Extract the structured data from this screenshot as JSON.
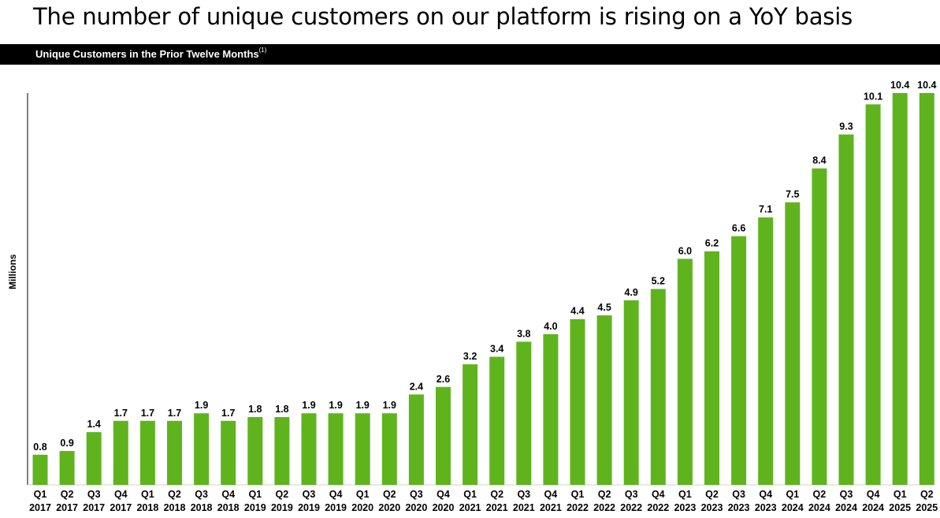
{
  "page": {
    "title": "The number of unique customers on our platform is rising on a YoY basis"
  },
  "banner": {
    "text": "Unique Customers in the Prior Twelve Months",
    "footnote": "(1)"
  },
  "colors": {
    "bar": "#5FB41E",
    "banner_bg": "#000000",
    "banner_text": "#FFFFFF"
  },
  "chart_data": {
    "type": "bar",
    "title": "Unique Customers in the Prior Twelve Months",
    "ylabel": "Millions",
    "xlabel": "",
    "ylim": [
      0,
      10.4
    ],
    "grid": false,
    "categories": [
      [
        "Q1",
        "2017"
      ],
      [
        "Q2",
        "2017"
      ],
      [
        "Q3",
        "2017"
      ],
      [
        "Q4",
        "2017"
      ],
      [
        "Q1",
        "2018"
      ],
      [
        "Q2",
        "2018"
      ],
      [
        "Q3",
        "2018"
      ],
      [
        "Q4",
        "2018"
      ],
      [
        "Q1",
        "2019"
      ],
      [
        "Q2",
        "2019"
      ],
      [
        "Q3",
        "2019"
      ],
      [
        "Q4",
        "2019"
      ],
      [
        "Q1",
        "2020"
      ],
      [
        "Q2",
        "2020"
      ],
      [
        "Q3",
        "2020"
      ],
      [
        "Q4",
        "2020"
      ],
      [
        "Q1",
        "2021"
      ],
      [
        "Q2",
        "2021"
      ],
      [
        "Q3",
        "2021"
      ],
      [
        "Q4",
        "2021"
      ],
      [
        "Q1",
        "2022"
      ],
      [
        "Q2",
        "2022"
      ],
      [
        "Q3",
        "2022"
      ],
      [
        "Q4",
        "2022"
      ],
      [
        "Q1",
        "2023"
      ],
      [
        "Q2",
        "2023"
      ],
      [
        "Q3",
        "2023"
      ],
      [
        "Q4",
        "2023"
      ],
      [
        "Q1",
        "2024"
      ],
      [
        "Q2",
        "2024"
      ],
      [
        "Q3",
        "2024"
      ],
      [
        "Q4",
        "2024"
      ],
      [
        "Q1",
        "2025"
      ],
      [
        "Q2",
        "2025"
      ]
    ],
    "values": [
      0.8,
      0.9,
      1.4,
      1.7,
      1.7,
      1.7,
      1.9,
      1.7,
      1.8,
      1.8,
      1.9,
      1.9,
      1.9,
      1.9,
      2.4,
      2.6,
      3.2,
      3.4,
      3.8,
      4.0,
      4.4,
      4.5,
      4.9,
      5.2,
      6.0,
      6.2,
      6.6,
      7.1,
      7.5,
      8.4,
      9.3,
      10.1,
      10.4,
      10.4
    ],
    "labels": [
      "0.8",
      "0.9",
      "1.4",
      "1.7",
      "1.7",
      "1.7",
      "1.9",
      "1.7",
      "1.8",
      "1.8",
      "1.9",
      "1.9",
      "1.9",
      "1.9",
      "2.4",
      "2.6",
      "3.2",
      "3.4",
      "3.8",
      "4.0",
      "4.4",
      "4.5",
      "4.9",
      "5.2",
      "6.0",
      "6.2",
      "6.6",
      "7.1",
      "7.5",
      "8.4",
      "9.3",
      "10.1",
      "10.4",
      "10.4"
    ]
  }
}
